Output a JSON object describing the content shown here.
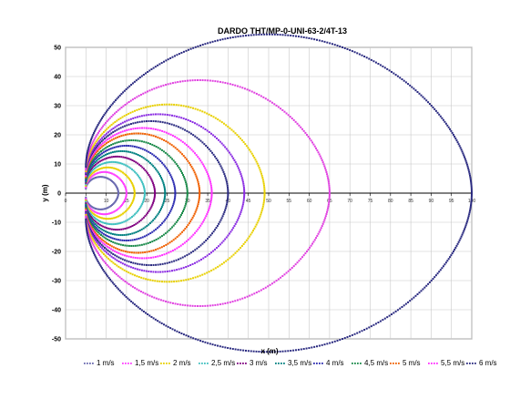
{
  "chart_data": {
    "type": "scatter",
    "title": "DARDO THT/MP-0-UNI-63-2/4T-13",
    "xlabel": "x (m)",
    "ylabel": "y (m)",
    "xlim": [
      0,
      100
    ],
    "ylim": [
      -50,
      50
    ],
    "x_ticks": [
      0,
      5,
      10,
      15,
      20,
      25,
      30,
      35,
      40,
      45,
      50,
      55,
      60,
      65,
      70,
      75,
      80,
      85,
      90,
      95,
      100
    ],
    "y_ticks": [
      -50,
      -40,
      -30,
      -20,
      -10,
      0,
      10,
      20,
      30,
      40,
      50
    ],
    "y_tick_labels": [
      "-50",
      "-40",
      "-30",
      "-20",
      "-10",
      "0",
      "10",
      "20",
      "30",
      "40",
      "50"
    ],
    "x_tick_labels": [
      "0",
      "5",
      "10",
      "15",
      "20",
      "25",
      "30",
      "35",
      "40",
      "45",
      "50",
      "55",
      "60",
      "65",
      "70",
      "75",
      "80",
      "85",
      "90",
      "95",
      "100"
    ],
    "grid": true,
    "legend_position": "bottom",
    "series": [
      {
        "name": "1 m/s",
        "color": "#6a6ab0",
        "x_min": 5,
        "x_max": 13,
        "y_max": 4.5,
        "y_min_abs": 1.5
      },
      {
        "name": "1,5 m/s",
        "color": "#ff40ff",
        "x_min": 5,
        "x_max": 15,
        "y_max": 5.8,
        "y_min_abs": 2
      },
      {
        "name": "2 m/s",
        "color": "#e8d000",
        "x_min": 5,
        "x_max": 17,
        "y_max": 7,
        "y_min_abs": 2.5
      },
      {
        "name": "2,5 m/s",
        "color": "#40c0c0",
        "x_min": 5,
        "x_max": 19.5,
        "y_max": 8.5,
        "y_min_abs": 3
      },
      {
        "name": "3 m/s",
        "color": "#800080",
        "x_min": 5,
        "x_max": 22,
        "y_max": 10,
        "y_min_abs": 3.5
      },
      {
        "name": "3,5 m/s",
        "color": "#008080",
        "x_min": 5,
        "x_max": 24.5,
        "y_max": 11.5,
        "y_min_abs": 4
      },
      {
        "name": "4 m/s",
        "color": "#2a2ab0",
        "x_min": 5,
        "x_max": 27,
        "y_max": 13,
        "y_min_abs": 4.5
      },
      {
        "name": "4,5 m/s",
        "color": "#1a8a4a",
        "x_min": 5,
        "x_max": 30,
        "y_max": 14.5,
        "y_min_abs": 5
      },
      {
        "name": "5 m/s",
        "color": "#f06000",
        "x_min": 5,
        "x_max": 33,
        "y_max": 16.5,
        "y_min_abs": 5.5
      },
      {
        "name": "5,5 m/s",
        "color": "#ff30ff",
        "x_min": 5,
        "x_max": 36,
        "y_max": 18,
        "y_min_abs": 6
      },
      {
        "name": "6 m/s",
        "color": "#2a2a80",
        "x_min": 5,
        "x_max": 40,
        "y_max": 20,
        "y_min_abs": 6.5
      },
      {
        "name": "",
        "color": "#8a2be2",
        "x_min": 5,
        "x_max": 44,
        "y_max": 22,
        "y_min_abs": 7
      },
      {
        "name": "",
        "color": "#e8d000",
        "x_min": 5,
        "x_max": 49,
        "y_max": 25,
        "y_min_abs": 7.5
      },
      {
        "name": "",
        "color": "#e040e0",
        "x_min": 5,
        "x_max": 65,
        "y_max": 33,
        "y_min_abs": 8
      },
      {
        "name": "",
        "color": "#2a2a80",
        "x_min": 5,
        "x_max": 100,
        "y_max": 48,
        "y_min_abs": 9
      }
    ]
  }
}
